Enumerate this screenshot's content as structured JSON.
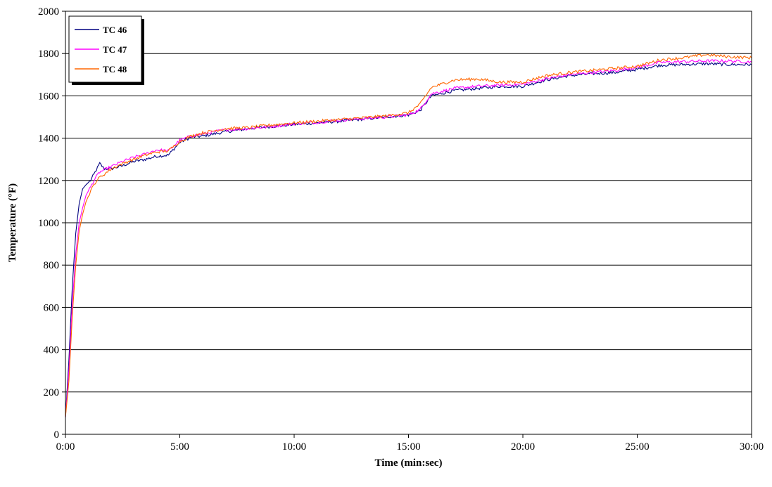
{
  "chart_data": {
    "type": "line",
    "title": "",
    "xlabel": "Time (min:sec)",
    "ylabel": "Temperature (°F)",
    "x_unit": "minutes",
    "xlim": [
      0,
      30
    ],
    "ylim": [
      0,
      2000
    ],
    "x_ticks": [
      {
        "value": 0,
        "label": "0:00"
      },
      {
        "value": 5,
        "label": "5:00"
      },
      {
        "value": 10,
        "label": "10:00"
      },
      {
        "value": 15,
        "label": "15:00"
      },
      {
        "value": 20,
        "label": "20:00"
      },
      {
        "value": 25,
        "label": "25:00"
      },
      {
        "value": 30,
        "label": "30:00"
      }
    ],
    "y_ticks": [
      0,
      200,
      400,
      600,
      800,
      1000,
      1200,
      1400,
      1600,
      1800,
      2000
    ],
    "grid": "horizontal",
    "legend_position": "top-left",
    "series": [
      {
        "name": "TC 46",
        "color": "#000080",
        "x": [
          0,
          0.15,
          0.3,
          0.45,
          0.6,
          0.75,
          0.9,
          1.1,
          1.3,
          1.5,
          1.7,
          2,
          2.5,
          3,
          3.5,
          4,
          4.5,
          5,
          5.5,
          6,
          7,
          8,
          9,
          10,
          11,
          12,
          13,
          14,
          15,
          15.5,
          16,
          17,
          18,
          19,
          20,
          21,
          22,
          23,
          24,
          25,
          26,
          27,
          28,
          29,
          30
        ],
        "y": [
          80,
          350,
          700,
          950,
          1090,
          1160,
          1180,
          1200,
          1240,
          1280,
          1255,
          1255,
          1270,
          1290,
          1300,
          1315,
          1320,
          1380,
          1405,
          1410,
          1430,
          1445,
          1455,
          1465,
          1472,
          1480,
          1490,
          1500,
          1510,
          1530,
          1600,
          1625,
          1635,
          1645,
          1645,
          1675,
          1695,
          1705,
          1710,
          1725,
          1745,
          1748,
          1752,
          1748,
          1748
        ]
      },
      {
        "name": "TC 47",
        "color": "#FF00FF",
        "x": [
          0,
          0.15,
          0.3,
          0.45,
          0.6,
          0.75,
          0.9,
          1.1,
          1.3,
          1.5,
          1.7,
          2,
          2.5,
          3,
          3.5,
          4,
          4.5,
          5,
          5.5,
          6,
          7,
          8,
          9,
          10,
          11,
          12,
          13,
          14,
          15,
          15.5,
          16,
          17,
          18,
          19,
          20,
          21,
          22,
          23,
          24,
          25,
          26,
          27,
          28,
          29,
          30
        ],
        "y": [
          80,
          300,
          620,
          850,
          1000,
          1070,
          1130,
          1170,
          1210,
          1240,
          1250,
          1265,
          1290,
          1310,
          1325,
          1345,
          1340,
          1390,
          1410,
          1420,
          1440,
          1445,
          1455,
          1468,
          1475,
          1485,
          1492,
          1500,
          1510,
          1535,
          1610,
          1635,
          1645,
          1650,
          1655,
          1680,
          1700,
          1710,
          1720,
          1735,
          1758,
          1762,
          1765,
          1765,
          1760
        ]
      },
      {
        "name": "TC 48",
        "color": "#FF6600",
        "x": [
          0,
          0.15,
          0.3,
          0.45,
          0.6,
          0.75,
          0.9,
          1.1,
          1.3,
          1.5,
          1.7,
          2,
          2.5,
          3,
          3.5,
          4,
          4.5,
          5,
          5.5,
          6,
          7,
          8,
          9,
          10,
          11,
          12,
          13,
          14,
          15,
          15.5,
          16,
          17,
          18,
          19,
          20,
          21,
          22,
          23,
          24,
          25,
          26,
          27,
          28,
          29,
          30
        ],
        "y": [
          80,
          250,
          560,
          800,
          960,
          1040,
          1100,
          1150,
          1190,
          1215,
          1230,
          1255,
          1280,
          1300,
          1320,
          1335,
          1340,
          1385,
          1410,
          1425,
          1445,
          1450,
          1462,
          1472,
          1480,
          1488,
          1496,
          1505,
          1520,
          1560,
          1640,
          1675,
          1680,
          1665,
          1665,
          1695,
          1710,
          1720,
          1730,
          1740,
          1770,
          1780,
          1795,
          1785,
          1780
        ]
      }
    ]
  }
}
